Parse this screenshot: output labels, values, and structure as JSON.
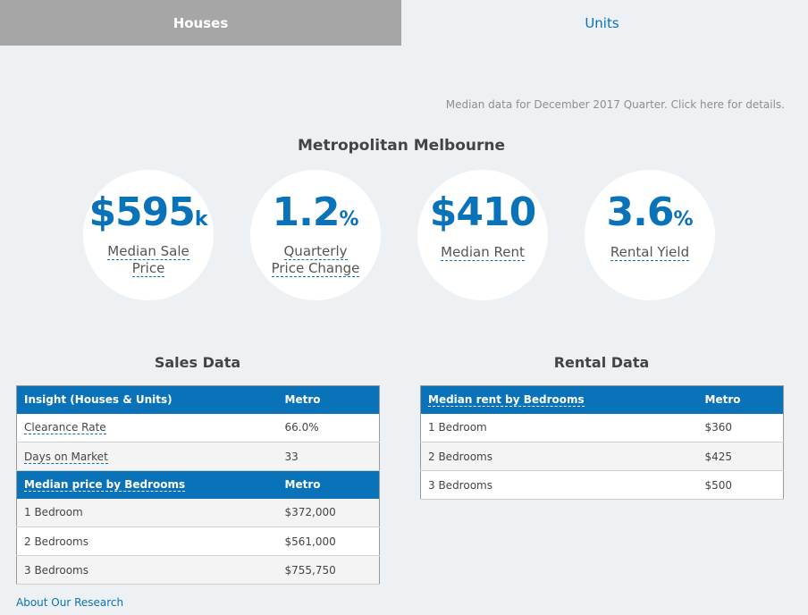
{
  "tabs": {
    "houses": "Houses",
    "units": "Units"
  },
  "note": "Median data for December 2017 Quarter. Click here for details.",
  "region_title": "Metropolitan Melbourne",
  "stats": [
    {
      "value": "$595",
      "unit": "k",
      "label_line1": "Median Sale",
      "label_line2": "Price"
    },
    {
      "value": "1.2",
      "unit": "%",
      "label_line1": "Quarterly",
      "label_line2": "Price Change"
    },
    {
      "value": "$410",
      "unit": "",
      "label_line1": "Median Rent",
      "label_line2": ""
    },
    {
      "value": "3.6",
      "unit": "%",
      "label_line1": "Rental Yield",
      "label_line2": ""
    }
  ],
  "sales": {
    "title": "Sales Data",
    "insight_header": "Insight (Houses & Units)",
    "metro_header": "Metro",
    "insight_rows": [
      {
        "label": "Clearance Rate",
        "value": "66.0%"
      },
      {
        "label": "Days on Market",
        "value": "33"
      }
    ],
    "bedroom_header": "Median price by Bedrooms",
    "bedroom_metro_header": "Metro",
    "bedroom_rows": [
      {
        "label": "1 Bedroom",
        "value": "$372,000"
      },
      {
        "label": "2 Bedrooms",
        "value": "$561,000"
      },
      {
        "label": "3 Bedrooms",
        "value": "$755,750"
      }
    ]
  },
  "rental": {
    "title": "Rental Data",
    "header": "Median rent by Bedrooms",
    "metro_header": "Metro",
    "rows": [
      {
        "label": "1 Bedroom",
        "value": "$360"
      },
      {
        "label": "2 Bedrooms",
        "value": "$425"
      },
      {
        "label": "3 Bedrooms",
        "value": "$500"
      }
    ]
  },
  "about_link": "About Our Research",
  "colors": {
    "accent": "#0a72b8",
    "tab_inactive": "#a6a6a6",
    "background": "#edf1f4"
  }
}
